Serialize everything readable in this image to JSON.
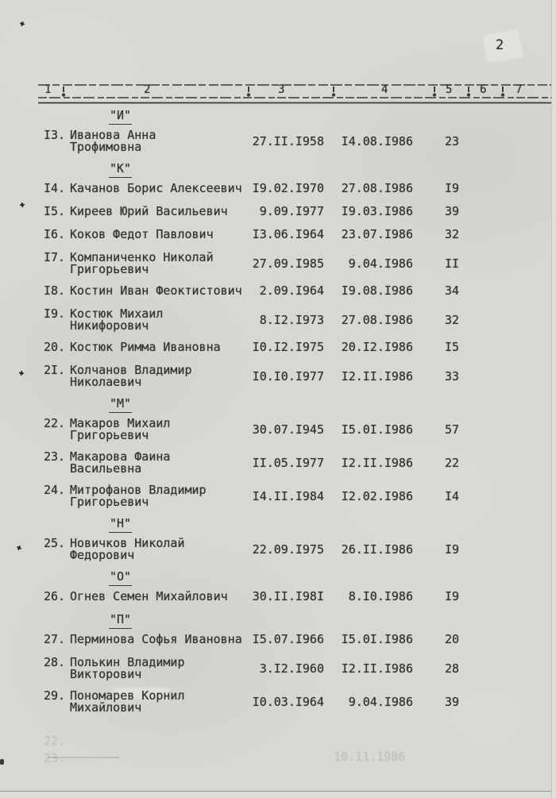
{
  "page": {
    "number": "2"
  },
  "ruler": {
    "labels": [
      "1",
      "2",
      "3",
      "4",
      "5",
      "6",
      "7"
    ]
  },
  "table": {
    "sections": [
      {
        "letter": "\"И\"",
        "entries": [
          {
            "num": "I3.",
            "name": [
              "Иванова Анна",
              "Трофимовна"
            ],
            "birth_date": "27.II.I958",
            "second_date": "I4.08.I986",
            "value": "23"
          }
        ]
      },
      {
        "letter": "\"К\"",
        "entries": [
          {
            "num": "I4.",
            "name": [
              "Качанов Борис Алексеевич"
            ],
            "birth_date": "I9.02.I970",
            "second_date": "27.08.I986",
            "value": "I9"
          },
          {
            "num": "I5.",
            "name": [
              "Киреев Юрий Васильевич"
            ],
            "birth_date": "9.09.I977",
            "second_date": "I9.03.I986",
            "value": "39"
          },
          {
            "num": "I6.",
            "name": [
              "Коков Федот Павлович"
            ],
            "birth_date": "I3.06.I964",
            "second_date": "23.07.I986",
            "value": "32"
          },
          {
            "num": "I7.",
            "name": [
              "Компаниченко Николай",
              "Григорьевич"
            ],
            "birth_date": "27.09.I985",
            "second_date": "9.04.I986",
            "value": "II"
          },
          {
            "num": "I8.",
            "name": [
              "Костин Иван Феоктистович"
            ],
            "birth_date": "2.09.I964",
            "second_date": "I9.08.I986",
            "value": "34"
          },
          {
            "num": "I9.",
            "name": [
              "Костюк Михаил",
              "Никифорович"
            ],
            "birth_date": "8.I2.I973",
            "second_date": "27.08.I986",
            "value": "32"
          },
          {
            "num": "20.",
            "name": [
              "Костюк Римма Ивановна"
            ],
            "birth_date": "I0.I2.I975",
            "second_date": "20.I2.I986",
            "value": "I5"
          },
          {
            "num": "2I.",
            "name": [
              "Колчанов Владимир",
              "Николаевич"
            ],
            "birth_date": "I0.I0.I977",
            "second_date": "I2.II.I986",
            "value": "33"
          }
        ]
      },
      {
        "letter": "\"М\"",
        "entries": [
          {
            "num": "22.",
            "name": [
              "Макаров Михаил",
              "Григорьевич"
            ],
            "birth_date": "30.07.I945",
            "second_date": "I5.0I.I986",
            "value": "57"
          },
          {
            "num": "23.",
            "name": [
              "Макарова Фаина",
              "Васильевна"
            ],
            "birth_date": "II.05.I977",
            "second_date": "I2.II.I986",
            "value": "22"
          },
          {
            "num": "24.",
            "name": [
              "Митрофанов Владимир",
              "Григорьевич"
            ],
            "birth_date": "I4.II.I984",
            "second_date": "I2.02.I986",
            "value": "I4"
          }
        ]
      },
      {
        "letter": "\"Н\"",
        "entries": [
          {
            "num": "25.",
            "name": [
              "Новичков Николай",
              "Федорович"
            ],
            "birth_date": "22.09.I975",
            "second_date": "26.II.I986",
            "value": "I9"
          }
        ]
      },
      {
        "letter": "\"О\"",
        "entries": [
          {
            "num": "26.",
            "name": [
              "Огнев Семен Михайлович"
            ],
            "birth_date": "30.II.I98I",
            "second_date": "8.I0.I986",
            "value": "I9"
          }
        ]
      },
      {
        "letter": "\"П\"",
        "entries": [
          {
            "num": "27.",
            "name": [
              "Перминова Софья Ивановна"
            ],
            "birth_date": "I5.07.I966",
            "second_date": "I5.0I.I986",
            "value": "20"
          },
          {
            "num": "28.",
            "name": [
              "Полькин Владимир",
              "Викторович"
            ],
            "birth_date": "3.I2.I960",
            "second_date": "I2.II.I986",
            "value": "28"
          },
          {
            "num": "29.",
            "name": [
              "Пономарев Корнил",
              "Михайлович"
            ],
            "birth_date": "I0.03.I964",
            "second_date": "9.04.I986",
            "value": "39"
          }
        ]
      }
    ]
  },
  "ghost_fragments": [
    "22.",
    "23.",
    "10.11.1986"
  ],
  "colors": {
    "paper": "#d8d7d3",
    "ink": "#34332f"
  }
}
